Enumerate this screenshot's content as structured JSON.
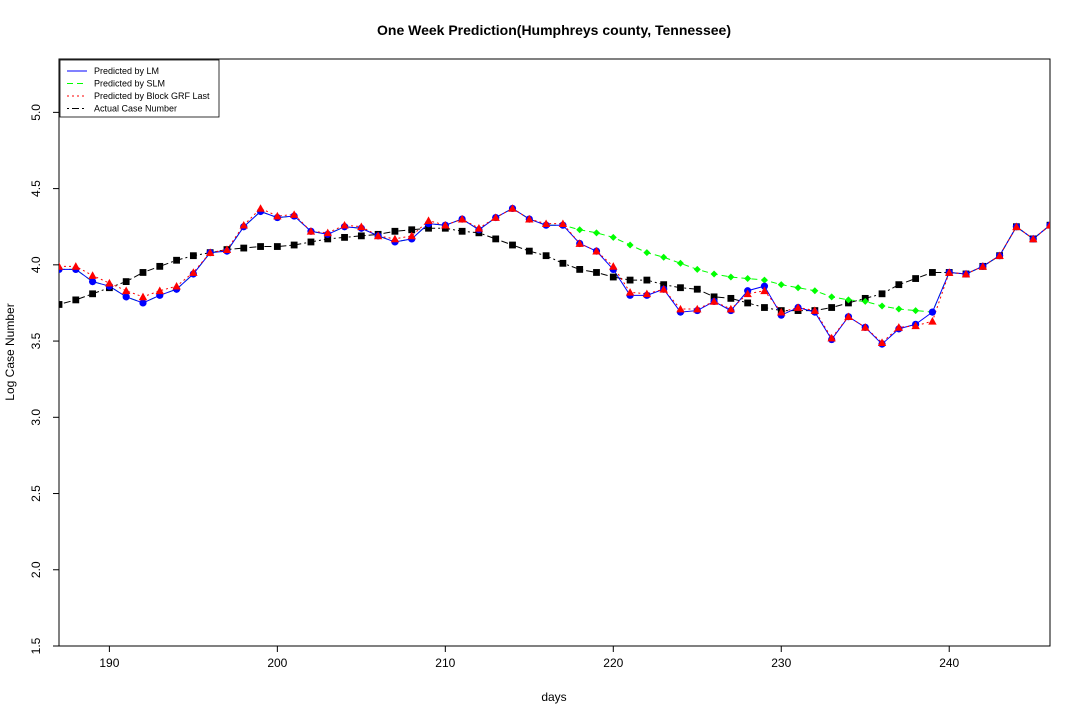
{
  "chart_data": {
    "type": "line",
    "title": "One Week Prediction(Humphreys county, Tennessee)",
    "xlabel": "days",
    "ylabel": "Log Case Number",
    "xlim": [
      187,
      246
    ],
    "ylim": [
      1.5,
      5.35
    ],
    "x_ticks": [
      190,
      200,
      210,
      220,
      230,
      240
    ],
    "y_ticks": [
      1.5,
      2.0,
      2.5,
      3.0,
      3.5,
      4.0,
      4.5,
      5.0
    ],
    "x_tick_labels": [
      "190",
      "200",
      "210",
      "220",
      "230",
      "240"
    ],
    "y_tick_labels": [
      "1.5",
      "2.0",
      "2.5",
      "3.0",
      "3.5",
      "4.0",
      "4.5",
      "5.0"
    ],
    "grid": false,
    "legend_position": "top-left",
    "legend": [
      {
        "label": "Predicted by LM",
        "color": "#0000ff",
        "dash": "solid"
      },
      {
        "label": "Predicted by SLM",
        "color": "#00ff00",
        "dash": "dashed"
      },
      {
        "label": "Predicted by Block GRF Last",
        "color": "#ff0000",
        "dash": "dotted"
      },
      {
        "label": "Actual Case Number",
        "color": "#000000",
        "dash": "dotdash"
      }
    ],
    "series": [
      {
        "name": "Predicted by LM",
        "color": "#0000ff",
        "dash": "solid",
        "marker": "circle",
        "x": [
          187,
          188,
          189,
          190,
          191,
          192,
          193,
          194,
          195,
          196,
          197,
          198,
          199,
          200,
          201,
          202,
          203,
          204,
          205,
          206,
          207,
          208,
          209,
          210,
          211,
          212,
          213,
          214,
          215,
          216,
          217,
          218,
          219,
          220,
          221,
          222,
          223,
          224,
          225,
          226,
          227,
          228,
          229,
          230,
          231,
          232,
          233,
          234,
          235,
          236,
          237,
          238,
          239,
          240,
          241,
          242,
          243,
          244,
          245,
          246
        ],
        "y": [
          3.97,
          3.97,
          3.89,
          3.86,
          3.79,
          3.75,
          3.8,
          3.84,
          3.94,
          4.08,
          4.09,
          4.25,
          4.35,
          4.31,
          4.32,
          4.22,
          4.2,
          4.25,
          4.24,
          4.19,
          4.15,
          4.17,
          4.27,
          4.26,
          4.3,
          4.23,
          4.31,
          4.37,
          4.3,
          4.26,
          4.26,
          4.14,
          4.09,
          3.97,
          3.8,
          3.8,
          3.84,
          3.69,
          3.7,
          3.76,
          3.7,
          3.83,
          3.86,
          3.67,
          3.72,
          3.69,
          3.51,
          3.66,
          3.59,
          3.48,
          3.58,
          3.61,
          3.69,
          3.95,
          3.94,
          3.99,
          4.06,
          4.25,
          4.17,
          4.26
        ]
      },
      {
        "name": "Predicted by SLM",
        "color": "#00ff00",
        "dash": "dashed",
        "marker": "diamond",
        "x": [
          187,
          188,
          189,
          190,
          191,
          192,
          193,
          194,
          195,
          196,
          197,
          198,
          199,
          200,
          201,
          202,
          203,
          204,
          205,
          206,
          207,
          208,
          209,
          210,
          211,
          212,
          213,
          214,
          215,
          216,
          217,
          218,
          219,
          220,
          221,
          222,
          223,
          224,
          225,
          226,
          227,
          228,
          229,
          230,
          231,
          232,
          233,
          234,
          235,
          236,
          237,
          238,
          239,
          240,
          241,
          242,
          243,
          244,
          245,
          246
        ],
        "y": [
          3.97,
          3.97,
          3.89,
          3.86,
          3.79,
          3.75,
          3.8,
          3.84,
          3.94,
          4.08,
          4.09,
          4.25,
          4.35,
          4.31,
          4.32,
          4.22,
          4.2,
          4.25,
          4.24,
          4.19,
          4.15,
          4.17,
          4.27,
          4.26,
          4.3,
          4.23,
          4.31,
          4.37,
          4.3,
          4.26,
          4.26,
          4.23,
          4.21,
          4.18,
          4.13,
          4.08,
          4.05,
          4.01,
          3.97,
          3.94,
          3.92,
          3.91,
          3.9,
          3.87,
          3.85,
          3.83,
          3.79,
          3.77,
          3.76,
          3.73,
          3.71,
          3.7,
          3.69,
          3.95,
          3.94,
          3.99,
          4.06,
          4.25,
          4.17,
          4.26
        ]
      },
      {
        "name": "Predicted by Block GRF Last",
        "color": "#ff0000",
        "dash": "dotted",
        "marker": "triangle",
        "x": [
          187,
          188,
          189,
          190,
          191,
          192,
          193,
          194,
          195,
          196,
          197,
          198,
          199,
          200,
          201,
          202,
          203,
          204,
          205,
          206,
          207,
          208,
          209,
          210,
          211,
          212,
          213,
          214,
          215,
          216,
          217,
          218,
          219,
          220,
          221,
          222,
          223,
          224,
          225,
          226,
          227,
          228,
          229,
          230,
          231,
          232,
          233,
          234,
          235,
          236,
          237,
          238,
          239,
          240,
          241,
          242,
          243,
          244,
          245,
          246
        ],
        "y": [
          3.99,
          3.99,
          3.93,
          3.88,
          3.83,
          3.79,
          3.83,
          3.86,
          3.95,
          4.08,
          4.1,
          4.26,
          4.37,
          4.32,
          4.33,
          4.22,
          4.21,
          4.26,
          4.25,
          4.19,
          4.17,
          4.19,
          4.29,
          4.26,
          4.3,
          4.24,
          4.31,
          4.37,
          4.3,
          4.27,
          4.27,
          4.14,
          4.09,
          3.99,
          3.82,
          3.81,
          3.84,
          3.71,
          3.71,
          3.76,
          3.71,
          3.81,
          3.83,
          3.69,
          3.72,
          3.7,
          3.52,
          3.66,
          3.59,
          3.49,
          3.59,
          3.6,
          3.63,
          3.95,
          3.94,
          3.99,
          4.06,
          4.25,
          4.17,
          4.26
        ]
      },
      {
        "name": "Actual Case Number",
        "color": "#000000",
        "dash": "dotdash",
        "marker": "square",
        "x": [
          187,
          188,
          189,
          190,
          191,
          192,
          193,
          194,
          195,
          196,
          197,
          198,
          199,
          200,
          201,
          202,
          203,
          204,
          205,
          206,
          207,
          208,
          209,
          210,
          211,
          212,
          213,
          214,
          215,
          216,
          217,
          218,
          219,
          220,
          221,
          222,
          223,
          224,
          225,
          226,
          227,
          228,
          229,
          230,
          231,
          232,
          233,
          234,
          235,
          236,
          237,
          238,
          239,
          240,
          241,
          242,
          243,
          244,
          245,
          246
        ],
        "y": [
          3.74,
          3.77,
          3.81,
          3.85,
          3.89,
          3.95,
          3.99,
          4.03,
          4.06,
          4.08,
          4.1,
          4.11,
          4.12,
          4.12,
          4.13,
          4.15,
          4.17,
          4.18,
          4.19,
          4.2,
          4.22,
          4.23,
          4.24,
          4.24,
          4.22,
          4.21,
          4.17,
          4.13,
          4.09,
          4.06,
          4.01,
          3.97,
          3.95,
          3.92,
          3.9,
          3.9,
          3.87,
          3.85,
          3.84,
          3.79,
          3.78,
          3.75,
          3.72,
          3.7,
          3.7,
          3.7,
          3.72,
          3.75,
          3.78,
          3.81,
          3.87,
          3.91,
          3.95,
          3.95,
          3.94,
          3.99,
          4.06,
          4.25,
          4.17,
          4.26
        ]
      }
    ]
  }
}
